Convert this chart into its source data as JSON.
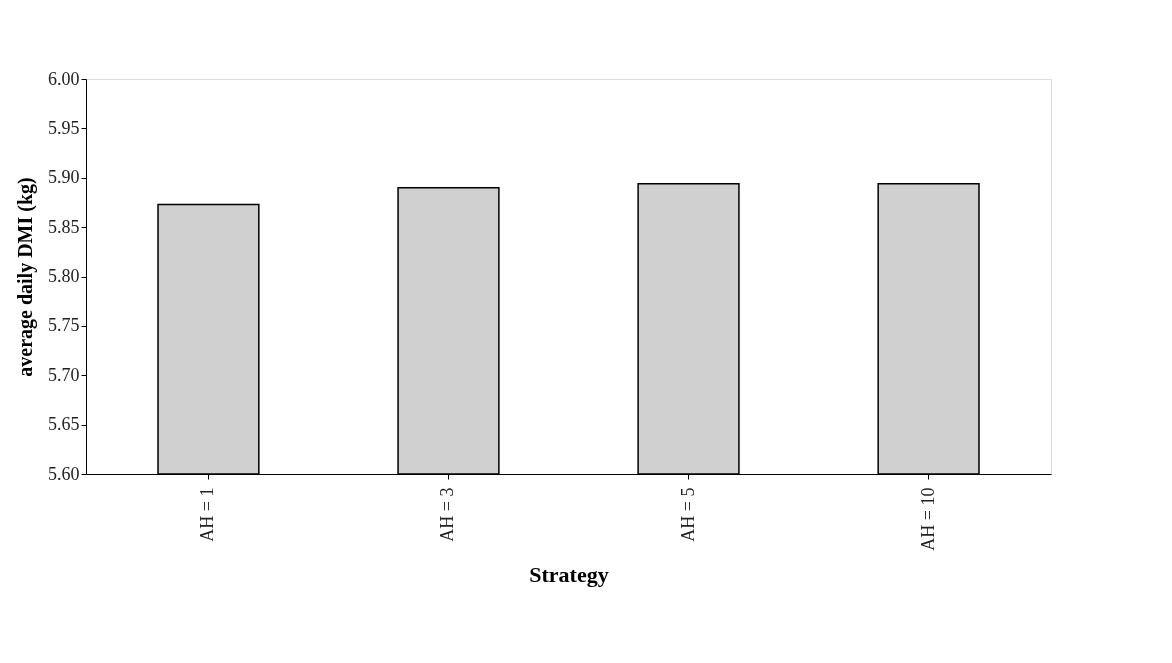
{
  "chart_data": {
    "type": "bar",
    "xlabel": "Strategy",
    "ylabel": "average daily DMI (kg)",
    "categories": [
      "AH = 1",
      "AH = 3",
      "AH = 5",
      "AH = 10"
    ],
    "values": [
      5.873,
      5.89,
      5.894,
      5.894
    ],
    "color": "#d0d0d0",
    "ylim": [
      5.6,
      6.0
    ],
    "yticks": [
      {
        "value": 5.6,
        "label": "5.60"
      },
      {
        "value": 5.65,
        "label": "5.65"
      },
      {
        "value": 5.7,
        "label": "5.70"
      },
      {
        "value": 5.75,
        "label": "5.75"
      },
      {
        "value": 5.8,
        "label": "5.80"
      },
      {
        "value": 5.85,
        "label": "5.85"
      },
      {
        "value": 5.9,
        "label": "5.90"
      },
      {
        "value": 5.95,
        "label": "5.95"
      },
      {
        "value": 6.0,
        "label": "6.00"
      }
    ],
    "grid": false
  }
}
